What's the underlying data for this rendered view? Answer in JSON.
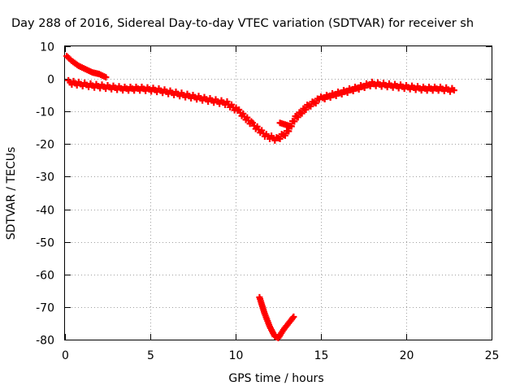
{
  "chart_data": {
    "type": "scatter",
    "title": "Day 288 of 2016, Sidereal Day-to-day VTEC variation (SDTVAR) for receiver sh",
    "xlabel": "GPS time / hours",
    "ylabel": "SDTVAR / TECUs",
    "xlim": [
      0,
      25
    ],
    "ylim": [
      -80,
      10
    ],
    "xticks": [
      0,
      5,
      10,
      15,
      20,
      25
    ],
    "yticks": [
      10,
      0,
      -10,
      -20,
      -30,
      -40,
      -50,
      -60,
      -70,
      -80
    ],
    "grid": true,
    "marker": "plus",
    "color": "#ff0000",
    "series": [
      {
        "x": [
          0.2,
          0.8,
          1.5,
          2.5,
          3.5,
          4.5,
          5.5,
          6.5,
          7.5,
          8.5,
          9.5,
          10.2,
          11.0,
          11.8,
          12.4,
          13.0,
          13.5,
          14.2,
          15.0,
          16.0,
          17.0,
          18.0,
          19.0,
          20.0,
          21.0,
          22.0,
          22.8
        ],
        "y": [
          -1,
          -1.5,
          -2,
          -2.5,
          -3,
          -3,
          -3.5,
          -4.5,
          -5.5,
          -6.5,
          -7.5,
          -10,
          -14,
          -17.5,
          -18.5,
          -16.5,
          -12,
          -8.5,
          -6,
          -4.5,
          -3,
          -1.5,
          -2,
          -2.5,
          -3,
          -3,
          -3.5
        ]
      },
      {
        "x": [
          0.1,
          0.4,
          0.8,
          1.2,
          1.6,
          2.0,
          2.4
        ],
        "y": [
          7,
          5.5,
          4,
          3,
          2,
          1.5,
          0.5
        ]
      },
      {
        "x": [
          12.6,
          12.9,
          13.2
        ],
        "y": [
          -13.5,
          -14,
          -14.5
        ]
      },
      {
        "x": [
          11.4,
          11.7,
          12.0,
          12.3,
          12.5,
          12.8,
          13.1,
          13.4
        ],
        "y": [
          -67,
          -72,
          -76,
          -79,
          -79.5,
          -77,
          -75,
          -73
        ]
      }
    ]
  }
}
